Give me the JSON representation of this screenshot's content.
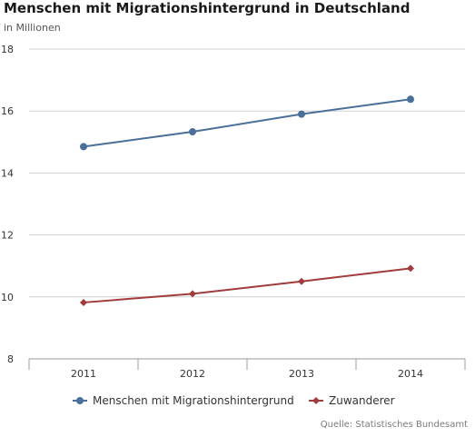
{
  "chart_data": {
    "type": "line",
    "title": "Menschen mit Migrationshintergrund in Deutschland",
    "subtitle": "in Millionen",
    "categories": [
      "2011",
      "2012",
      "2013",
      "2014"
    ],
    "ylim": [
      8,
      18
    ],
    "yticks": [
      8,
      10,
      12,
      14,
      16,
      18
    ],
    "grid": true,
    "legend_position": "bottom",
    "source": "Quelle: Statistisches Bundesamt",
    "series": [
      {
        "name": "Menschen mit Migrationshintergrund",
        "values": [
          14.85,
          15.33,
          15.9,
          16.38
        ],
        "color": "#4a6f9a",
        "marker": "circle"
      },
      {
        "name": "Zuwanderer",
        "values": [
          9.82,
          10.1,
          10.5,
          10.92
        ],
        "color": "#a23b3b",
        "marker": "diamond"
      }
    ]
  }
}
